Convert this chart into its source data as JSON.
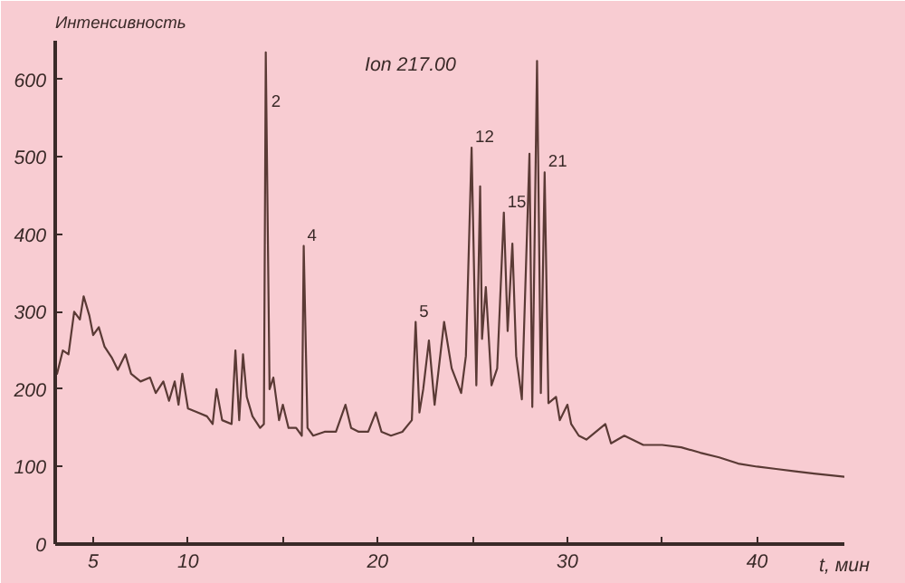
{
  "chart_data": {
    "type": "line",
    "title": "Ion 217.00",
    "xlabel": "t, мин",
    "ylabel": "Интенсивность",
    "xlim": [
      3,
      44.6
    ],
    "ylim": [
      0,
      650
    ],
    "xticks": [
      5,
      10,
      {
        "value": 15,
        "label": null
      },
      20,
      {
        "value": 25,
        "label": null
      },
      30,
      {
        "value": 35,
        "label": null
      },
      40
    ],
    "yticks": [
      0,
      100,
      200,
      300,
      400,
      500,
      600
    ],
    "grid": false,
    "marker": "none",
    "line_style": "solid",
    "series": [
      {
        "color": "#5a3a35",
        "x": [
          3.1,
          3.4,
          3.7,
          4.0,
          4.3,
          4.5,
          4.8,
          5.0,
          5.3,
          5.6,
          6.0,
          6.3,
          6.7,
          7.0,
          7.5,
          8.0,
          8.3,
          8.7,
          9.0,
          9.3,
          9.5,
          9.7,
          10.0,
          10.5,
          11.0,
          11.3,
          11.5,
          11.8,
          12.3,
          12.5,
          12.7,
          12.9,
          13.1,
          13.4,
          13.8,
          14.0,
          14.1,
          14.3,
          14.5,
          14.8,
          15.0,
          15.3,
          15.7,
          16.0,
          16.1,
          16.3,
          16.6,
          17.2,
          17.8,
          18.3,
          18.6,
          19.0,
          19.5,
          19.9,
          20.2,
          20.7,
          21.3,
          21.8,
          22.0,
          22.2,
          22.4,
          22.7,
          23.0,
          23.5,
          23.9,
          24.4,
          24.65,
          24.95,
          25.2,
          25.4,
          25.5,
          25.7,
          26.0,
          26.3,
          26.65,
          26.85,
          27.1,
          27.3,
          27.6,
          28.0,
          28.15,
          28.4,
          28.6,
          28.8,
          29.0,
          29.4,
          29.6,
          30.0,
          30.2,
          30.6,
          31.0,
          32.0,
          32.3,
          33.0,
          34.0,
          35.0,
          36.0,
          37.0,
          38.0,
          39.0,
          40.0,
          41.0,
          42.0,
          43.0,
          44.6
        ],
        "values": [
          220,
          250,
          245,
          300,
          290,
          320,
          295,
          270,
          280,
          255,
          240,
          225,
          245,
          220,
          210,
          215,
          195,
          210,
          185,
          210,
          180,
          220,
          175,
          170,
          165,
          155,
          200,
          160,
          155,
          250,
          160,
          245,
          190,
          165,
          150,
          155,
          635,
          200,
          215,
          160,
          180,
          150,
          150,
          140,
          385,
          150,
          140,
          145,
          145,
          180,
          150,
          145,
          145,
          170,
          145,
          140,
          145,
          160,
          287,
          170,
          200,
          263,
          180,
          287,
          227,
          195,
          243,
          512,
          205,
          462,
          265,
          332,
          205,
          227,
          428,
          275,
          388,
          243,
          187,
          504,
          177,
          624,
          195,
          480,
          182,
          190,
          160,
          180,
          155,
          140,
          135,
          155,
          130,
          140,
          128,
          128,
          125,
          118,
          112,
          104,
          100,
          97,
          94,
          91,
          87
        ]
      }
    ],
    "annotations": [
      {
        "text": "2",
        "x": 14.1,
        "y": 635
      },
      {
        "text": "4",
        "x": 16.1,
        "y": 385
      },
      {
        "text": "5",
        "x": 22.0,
        "y": 287
      },
      {
        "text": "12",
        "x": 24.95,
        "y": 512
      },
      {
        "text": "15",
        "x": 26.65,
        "y": 428
      },
      {
        "text": "21",
        "x": 28.8,
        "y": 480
      }
    ]
  }
}
